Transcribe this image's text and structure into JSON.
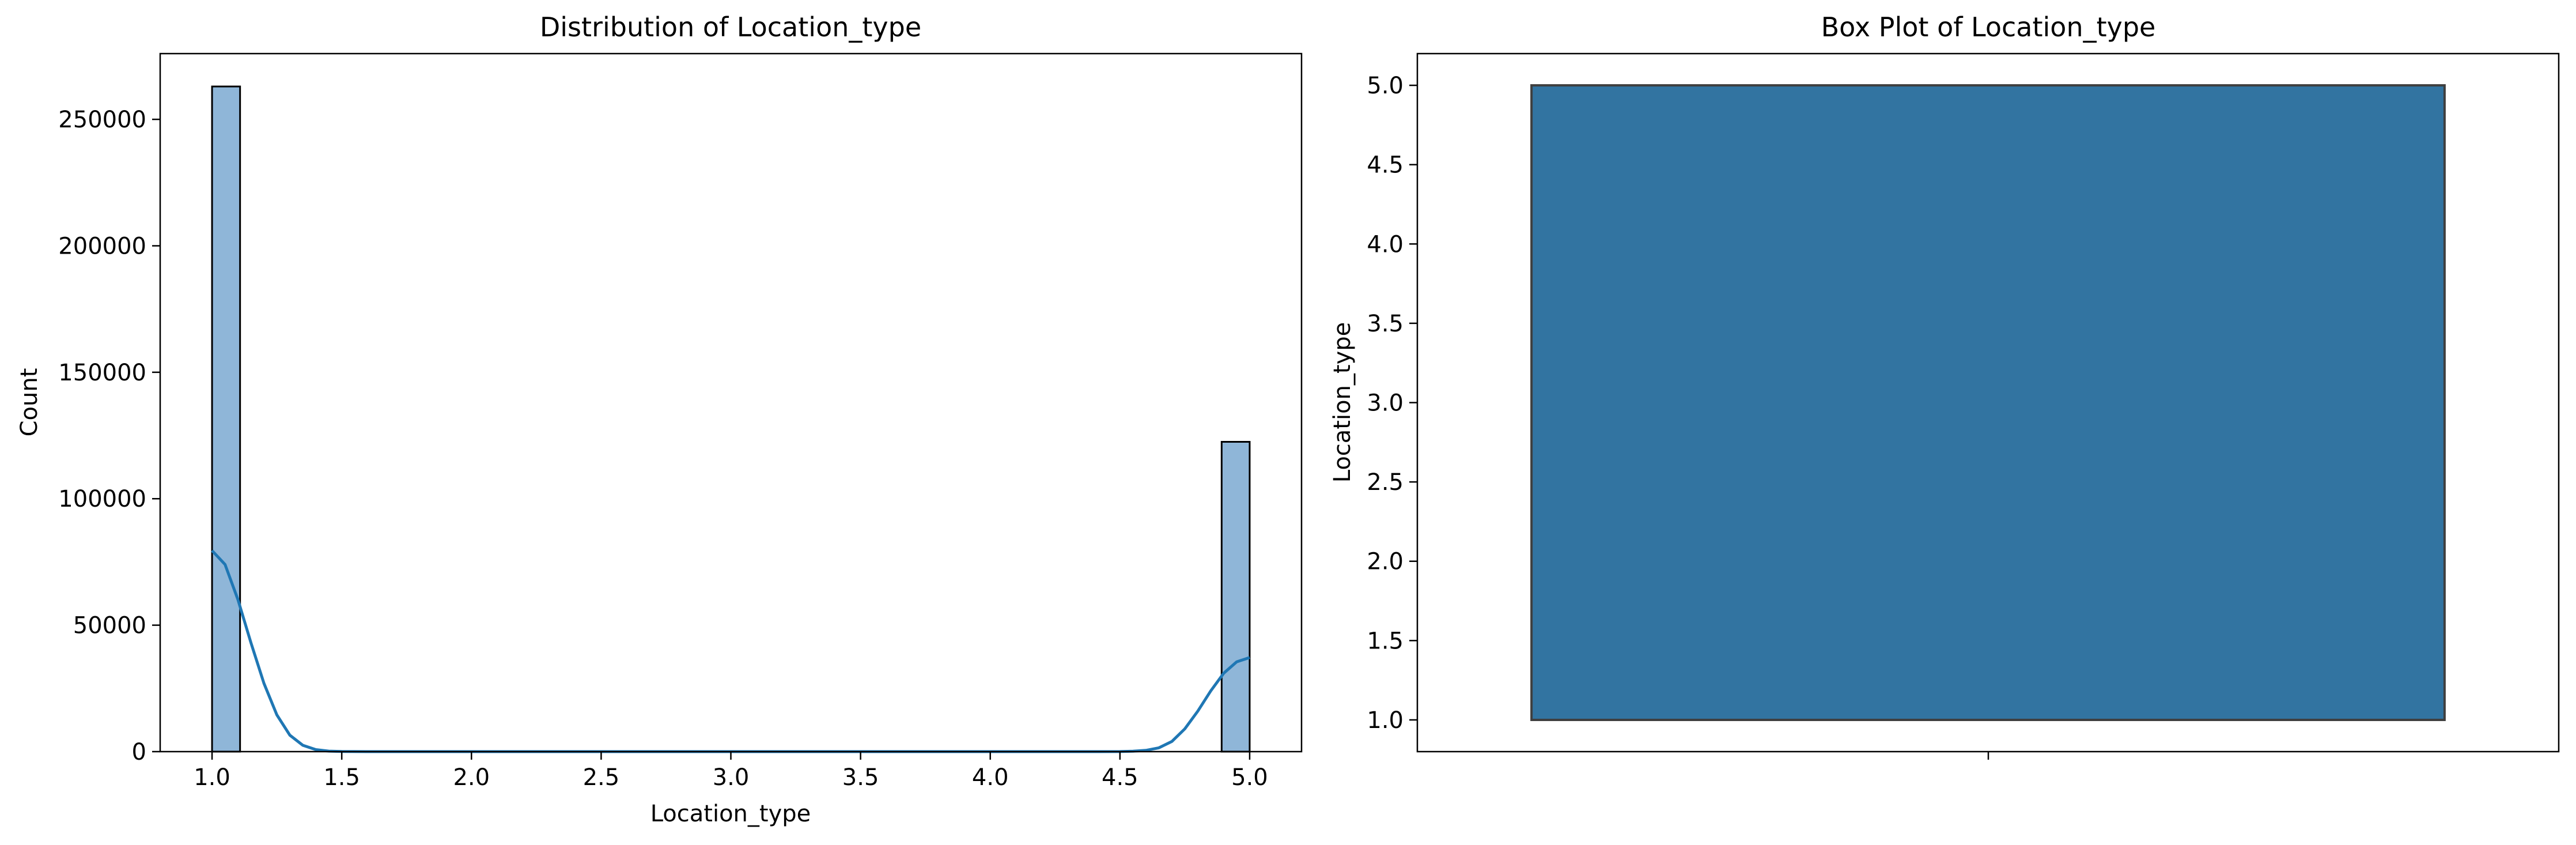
{
  "charts": [
    {
      "title": "Distribution of Location_type",
      "xlabel": "Location_type",
      "ylabel": "Count"
    },
    {
      "title": "Box Plot of Location_type",
      "xlabel": "",
      "ylabel": "Location_type"
    }
  ],
  "chart_data": [
    {
      "type": "bar",
      "subtype": "histogram-with-kde",
      "title": "Distribution of Location_type",
      "xlabel": "Location_type",
      "ylabel": "Count",
      "xlim": [
        0.8,
        5.2
      ],
      "ylim": [
        0,
        276000
      ],
      "xticks": [
        1.0,
        1.5,
        2.0,
        2.5,
        3.0,
        3.5,
        4.0,
        4.5,
        5.0
      ],
      "xtick_labels": [
        "1.0",
        "1.5",
        "2.0",
        "2.5",
        "3.0",
        "3.5",
        "4.0",
        "4.5",
        "5.0"
      ],
      "yticks": [
        0,
        50000,
        100000,
        150000,
        200000,
        250000
      ],
      "ytick_labels": [
        "0",
        "50000",
        "100000",
        "150000",
        "200000",
        "250000"
      ],
      "bin_width": 0.108,
      "bars": [
        {
          "x_start": 1.0,
          "x_end": 1.108,
          "value": 263000
        },
        {
          "x_start": 4.892,
          "x_end": 5.0,
          "value": 122500
        }
      ],
      "kde": {
        "x": [
          1.0,
          1.05,
          1.1,
          1.15,
          1.2,
          1.25,
          1.3,
          1.35,
          1.4,
          1.45,
          1.5,
          1.6,
          2.0,
          3.0,
          4.0,
          4.4,
          4.5,
          4.55,
          4.6,
          4.65,
          4.7,
          4.75,
          4.8,
          4.85,
          4.9,
          4.95,
          5.0
        ],
        "y": [
          79500,
          74000,
          60000,
          43000,
          27000,
          14500,
          6500,
          2500,
          800,
          200,
          50,
          0,
          0,
          0,
          0,
          0,
          30,
          150,
          500,
          1500,
          4000,
          9000,
          16000,
          24000,
          31000,
          35500,
          37200
        ]
      },
      "bar_color": "#8fb6d8",
      "edge_color": "#000000",
      "line_color": "#1f77b4"
    },
    {
      "type": "box",
      "title": "Box Plot of Location_type",
      "xlabel": "",
      "ylabel": "Location_type",
      "ylim": [
        0.8,
        5.2
      ],
      "yticks": [
        1.0,
        1.5,
        2.0,
        2.5,
        3.0,
        3.5,
        4.0,
        4.5,
        5.0
      ],
      "ytick_labels": [
        "1.0",
        "1.5",
        "2.0",
        "2.5",
        "3.0",
        "3.5",
        "4.0",
        "4.5",
        "5.0"
      ],
      "box": {
        "whisker_low": 1.0,
        "q1": 1.0,
        "median": 1.0,
        "q3": 5.0,
        "whisker_high": 5.0
      },
      "box_color": "#3274a1",
      "edge_color": "#3f3f3f"
    }
  ]
}
